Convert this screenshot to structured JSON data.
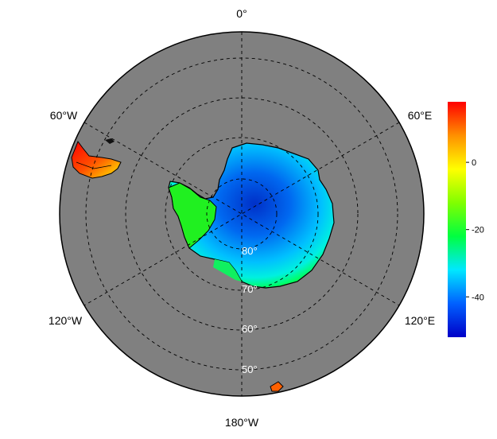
{
  "map": {
    "projection": "south-polar-stereographic",
    "ocean_color": "#808080",
    "land_colormap": "jet",
    "longitude_labels": [
      {
        "id": "lon-0",
        "text": "0°"
      },
      {
        "id": "lon-60e",
        "text": "60°E"
      },
      {
        "id": "lon-120e",
        "text": "120°E"
      },
      {
        "id": "lon-180w",
        "text": "180°W"
      },
      {
        "id": "lon-120w",
        "text": "120°W"
      },
      {
        "id": "lon-60w",
        "text": "60°W"
      }
    ],
    "latitude_labels": [
      {
        "id": "lat-80",
        "text": "80°"
      },
      {
        "id": "lat-70",
        "text": "70°"
      },
      {
        "id": "lat-60",
        "text": "60°"
      },
      {
        "id": "lat-50",
        "text": "50°"
      }
    ]
  },
  "colorbar": {
    "min": -52,
    "max": 18,
    "ticks": [
      "0",
      "-20",
      "-40"
    ],
    "tick_values": [
      0,
      -20,
      -40
    ],
    "colors": [
      "#0000c8",
      "#0060ff",
      "#00e8ff",
      "#00ff40",
      "#80ff00",
      "#ffff00",
      "#ff9000",
      "#ff0000"
    ]
  }
}
